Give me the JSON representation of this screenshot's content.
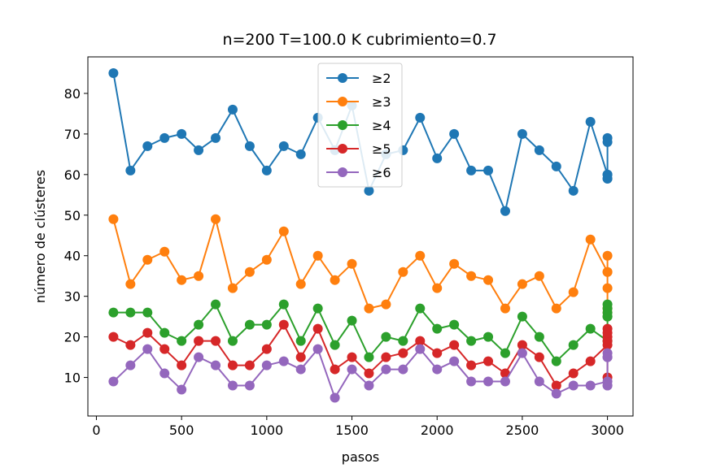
{
  "chart_data": {
    "type": "line",
    "title": "n=200 T=100.0 K cubrimiento=0.7",
    "xlabel": "pasos",
    "ylabel": "número de clústeres",
    "xlim": [
      -50,
      3150
    ],
    "ylim": [
      0.5,
      89
    ],
    "xticks": [
      0,
      500,
      1000,
      1500,
      2000,
      2500,
      3000
    ],
    "yticks": [
      10,
      20,
      30,
      40,
      50,
      60,
      70,
      80
    ],
    "grid": false,
    "legend_position": "top-center",
    "x": [
      100,
      200,
      300,
      400,
      500,
      600,
      700,
      800,
      900,
      1000,
      1100,
      1200,
      1300,
      1400,
      1500,
      1600,
      1700,
      1800,
      1900,
      2000,
      2100,
      2200,
      2300,
      2400,
      2500,
      2600,
      2700,
      2800,
      2900,
      3000,
      3000,
      3000,
      3000,
      3000,
      3000
    ],
    "series": [
      {
        "name": "≥2",
        "color": "#1f77b4",
        "values": [
          85,
          61,
          67,
          69,
          70,
          66,
          69,
          76,
          67,
          61,
          67,
          65,
          74,
          66,
          77,
          56,
          65,
          66,
          74,
          64,
          70,
          61,
          61,
          51,
          70,
          66,
          62,
          56,
          73,
          60,
          59,
          69,
          68,
          60,
          59
        ]
      },
      {
        "name": "≥3",
        "color": "#ff7f0e",
        "values": [
          49,
          33,
          39,
          41,
          34,
          35,
          49,
          32,
          36,
          39,
          46,
          33,
          40,
          34,
          38,
          27,
          28,
          36,
          40,
          32,
          38,
          35,
          34,
          27,
          33,
          35,
          27,
          31,
          44,
          36,
          27,
          40,
          36,
          32,
          26
        ]
      },
      {
        "name": "≥4",
        "color": "#2ca02c",
        "values": [
          26,
          26,
          26,
          21,
          19,
          23,
          28,
          19,
          23,
          23,
          28,
          19,
          27,
          18,
          24,
          15,
          20,
          19,
          27,
          22,
          23,
          19,
          20,
          16,
          25,
          20,
          14,
          18,
          22,
          19,
          28,
          25,
          27,
          26,
          25
        ]
      },
      {
        "name": "≥5",
        "color": "#d62728",
        "values": [
          20,
          18,
          21,
          17,
          13,
          19,
          19,
          13,
          13,
          17,
          23,
          15,
          22,
          12,
          15,
          11,
          15,
          16,
          19,
          16,
          18,
          13,
          14,
          11,
          18,
          15,
          8,
          11,
          14,
          18,
          22,
          20,
          19,
          21,
          10
        ]
      },
      {
        "name": "≥6",
        "color": "#9467bd",
        "values": [
          9,
          13,
          17,
          11,
          7,
          15,
          13,
          8,
          8,
          13,
          14,
          12,
          17,
          5,
          12,
          8,
          12,
          12,
          17,
          12,
          14,
          9,
          9,
          9,
          16,
          9,
          6,
          8,
          8,
          9,
          8,
          16,
          15,
          15,
          8
        ]
      }
    ]
  }
}
